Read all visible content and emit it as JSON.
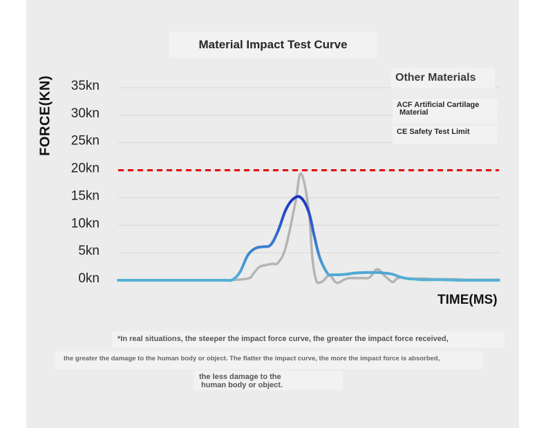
{
  "title": "Material Impact Test Curve",
  "legend": {
    "title": "Other Materials",
    "acf_line1": "ACF Artificial Cartilage",
    "acf_line2": "Material",
    "ce": "CE Safety Test Limit"
  },
  "notes": {
    "line1": "*In real situations, the steeper the impact force curve, the greater the impact force received,",
    "line2": "the greater the damage to the human body or object. The flatter the impact curve, the more the impact force is absorbed,",
    "line3a": "the less damage to the",
    "line3b": "human body or object."
  },
  "colors": {
    "other": "#b4b4b4",
    "acf_start": "#55b2d6",
    "acf_peak": "#1a34c4",
    "limit": "#e00000",
    "grid": "#d6d6d6"
  },
  "chart_data": {
    "type": "line",
    "title": "Material Impact Test Curve",
    "ylabel": "FORCE(KN)",
    "xlabel": "TIME(MS)",
    "yticks": [
      "0kn",
      "5kn",
      "10kn",
      "15kn",
      "20kn",
      "25kn",
      "30kn",
      "35kn"
    ],
    "ylim": [
      0,
      35
    ],
    "xlim": [
      0,
      100
    ],
    "limit_line": {
      "name": "CE Safety Test Limit",
      "value": 20,
      "style": "dashed"
    },
    "series": [
      {
        "name": "Other Materials",
        "x": [
          0,
          10,
          20,
          28,
          34,
          35.5,
          37,
          39,
          40.5,
          42,
          44,
          46.5,
          48,
          50,
          51,
          52,
          53,
          54,
          55.5,
          57,
          58,
          59,
          60,
          61,
          62,
          64,
          66,
          68,
          70,
          72,
          73,
          74,
          75,
          77,
          79,
          81,
          83,
          85,
          88,
          92,
          96,
          100
        ],
        "y": [
          0,
          0,
          0,
          0,
          0.3,
          1.2,
          2.4,
          2.8,
          3.0,
          3.2,
          6,
          14,
          19.4,
          13,
          4,
          0,
          -0.4,
          0,
          0.9,
          -0.3,
          -0.4,
          0,
          0.3,
          0.4,
          0.4,
          0.4,
          0.5,
          2,
          0.8,
          -0.3,
          0.2,
          0.5,
          0.4,
          0.3,
          0.3,
          0.3,
          0.2,
          0.2,
          0.2,
          0.1,
          0.1,
          0.1
        ]
      },
      {
        "name": "ACF Artificial Cartilage Material",
        "x": [
          0,
          10,
          20,
          28,
          30,
          32,
          34,
          36,
          38,
          40,
          42,
          44,
          46,
          48,
          50,
          51.5,
          53,
          55,
          56,
          57,
          58,
          60,
          62,
          65,
          68,
          70,
          72,
          74,
          76,
          78,
          80,
          85,
          90,
          95,
          100
        ],
        "y": [
          0,
          0,
          0,
          0,
          0.1,
          1.5,
          4.5,
          5.8,
          6.1,
          6.4,
          9,
          12.8,
          14.8,
          15.0,
          12.5,
          8,
          4,
          1.2,
          1.0,
          1.0,
          1.0,
          1.1,
          1.3,
          1.4,
          1.4,
          1.3,
          1.1,
          0.6,
          0.3,
          0.2,
          0.1,
          0.1,
          0,
          0,
          0
        ]
      }
    ]
  }
}
